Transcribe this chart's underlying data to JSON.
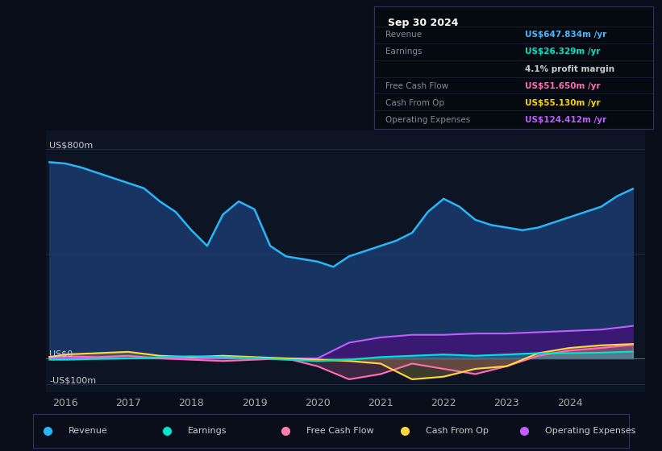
{
  "bg_color": "#0a0e1a",
  "plot_bg_color": "#0d1525",
  "grid_color": "#1e2d45",
  "title_box": {
    "date": "Sep 30 2024",
    "rows": [
      {
        "label": "Revenue",
        "value": "US$647.834m /yr",
        "value_color": "#4db8ff"
      },
      {
        "label": "Earnings",
        "value": "US$26.329m /yr",
        "value_color": "#00e5cc"
      },
      {
        "label": "",
        "value": "4.1% profit margin",
        "value_color": "#cccccc"
      },
      {
        "label": "Free Cash Flow",
        "value": "US$51.650m /yr",
        "value_color": "#ff6eb4"
      },
      {
        "label": "Cash From Op",
        "value": "US$55.130m /yr",
        "value_color": "#ffd700"
      },
      {
        "label": "Operating Expenses",
        "value": "US$124.412m /yr",
        "value_color": "#bf5fff"
      }
    ]
  },
  "ylabel_left": "US$800m",
  "ylabel_zero": "US$0",
  "ylabel_neg": "-US$100m",
  "ylim": [
    -130,
    870
  ],
  "xlim": [
    2015.7,
    2025.2
  ],
  "xticks": [
    2016,
    2017,
    2018,
    2019,
    2020,
    2021,
    2022,
    2023,
    2024
  ],
  "legend": [
    {
      "label": "Revenue",
      "color": "#29b6f6"
    },
    {
      "label": "Earnings",
      "color": "#00e5cc"
    },
    {
      "label": "Free Cash Flow",
      "color": "#ff80ab"
    },
    {
      "label": "Cash From Op",
      "color": "#ffd740"
    },
    {
      "label": "Operating Expenses",
      "color": "#bf5fff"
    }
  ],
  "revenue": {
    "x": [
      2015.75,
      2016.0,
      2016.25,
      2016.5,
      2016.75,
      2017.0,
      2017.25,
      2017.5,
      2017.75,
      2018.0,
      2018.25,
      2018.5,
      2018.75,
      2019.0,
      2019.25,
      2019.5,
      2019.75,
      2020.0,
      2020.25,
      2020.5,
      2020.75,
      2021.0,
      2021.25,
      2021.5,
      2021.75,
      2022.0,
      2022.25,
      2022.5,
      2022.75,
      2023.0,
      2023.25,
      2023.5,
      2023.75,
      2024.0,
      2024.25,
      2024.5,
      2024.75,
      2025.0
    ],
    "y": [
      750,
      745,
      730,
      710,
      690,
      670,
      650,
      600,
      560,
      490,
      430,
      550,
      600,
      570,
      430,
      390,
      380,
      370,
      350,
      390,
      410,
      430,
      450,
      480,
      560,
      610,
      580,
      530,
      510,
      500,
      490,
      500,
      520,
      540,
      560,
      580,
      620,
      648
    ],
    "color": "#29b6f6",
    "fill_color": "#1a3a6e"
  },
  "earnings": {
    "x": [
      2015.75,
      2016.0,
      2016.5,
      2017.0,
      2017.5,
      2018.0,
      2018.5,
      2019.0,
      2019.5,
      2020.0,
      2020.5,
      2021.0,
      2021.5,
      2022.0,
      2022.5,
      2023.0,
      2023.5,
      2024.0,
      2024.5,
      2025.0
    ],
    "y": [
      -5,
      -5,
      -2,
      0,
      5,
      8,
      5,
      2,
      -5,
      -10,
      -5,
      5,
      10,
      15,
      10,
      15,
      20,
      20,
      22,
      26
    ],
    "color": "#00e5cc",
    "fill_alpha": 0.3,
    "fill_color": "#00e5cc"
  },
  "free_cash_flow": {
    "x": [
      2015.75,
      2016.0,
      2016.5,
      2017.0,
      2017.5,
      2018.0,
      2018.5,
      2019.0,
      2019.5,
      2020.0,
      2020.5,
      2021.0,
      2021.5,
      2022.0,
      2022.5,
      2023.0,
      2023.5,
      2024.0,
      2024.5,
      2025.0
    ],
    "y": [
      5,
      8,
      5,
      10,
      0,
      -5,
      -10,
      -5,
      0,
      -30,
      -80,
      -60,
      -20,
      -40,
      -60,
      -30,
      10,
      30,
      40,
      52
    ],
    "color": "#ff6eb4",
    "fill_color": "#ff6eb4",
    "fill_alpha": 0.2
  },
  "cash_from_op": {
    "x": [
      2015.75,
      2016.0,
      2016.5,
      2017.0,
      2017.5,
      2018.0,
      2018.5,
      2019.0,
      2019.5,
      2020.0,
      2020.5,
      2021.0,
      2021.5,
      2022.0,
      2022.5,
      2023.0,
      2023.5,
      2024.0,
      2024.5,
      2025.0
    ],
    "y": [
      5,
      15,
      20,
      25,
      10,
      5,
      10,
      5,
      0,
      -5,
      -10,
      -20,
      -80,
      -70,
      -40,
      -30,
      20,
      40,
      50,
      55
    ],
    "color": "#ffd740",
    "fill_color": "#ffd740",
    "fill_alpha": 0.2
  },
  "operating_expenses": {
    "x": [
      2015.75,
      2016.0,
      2016.5,
      2017.0,
      2017.5,
      2018.0,
      2018.5,
      2019.0,
      2019.5,
      2020.0,
      2020.5,
      2021.0,
      2021.5,
      2022.0,
      2022.5,
      2023.0,
      2023.5,
      2024.0,
      2024.5,
      2025.0
    ],
    "y": [
      0,
      0,
      0,
      0,
      0,
      0,
      0,
      0,
      0,
      0,
      60,
      80,
      90,
      90,
      95,
      95,
      100,
      105,
      110,
      124
    ],
    "color": "#bf5fff",
    "fill_color": "#5a0080",
    "fill_alpha": 0.5
  }
}
